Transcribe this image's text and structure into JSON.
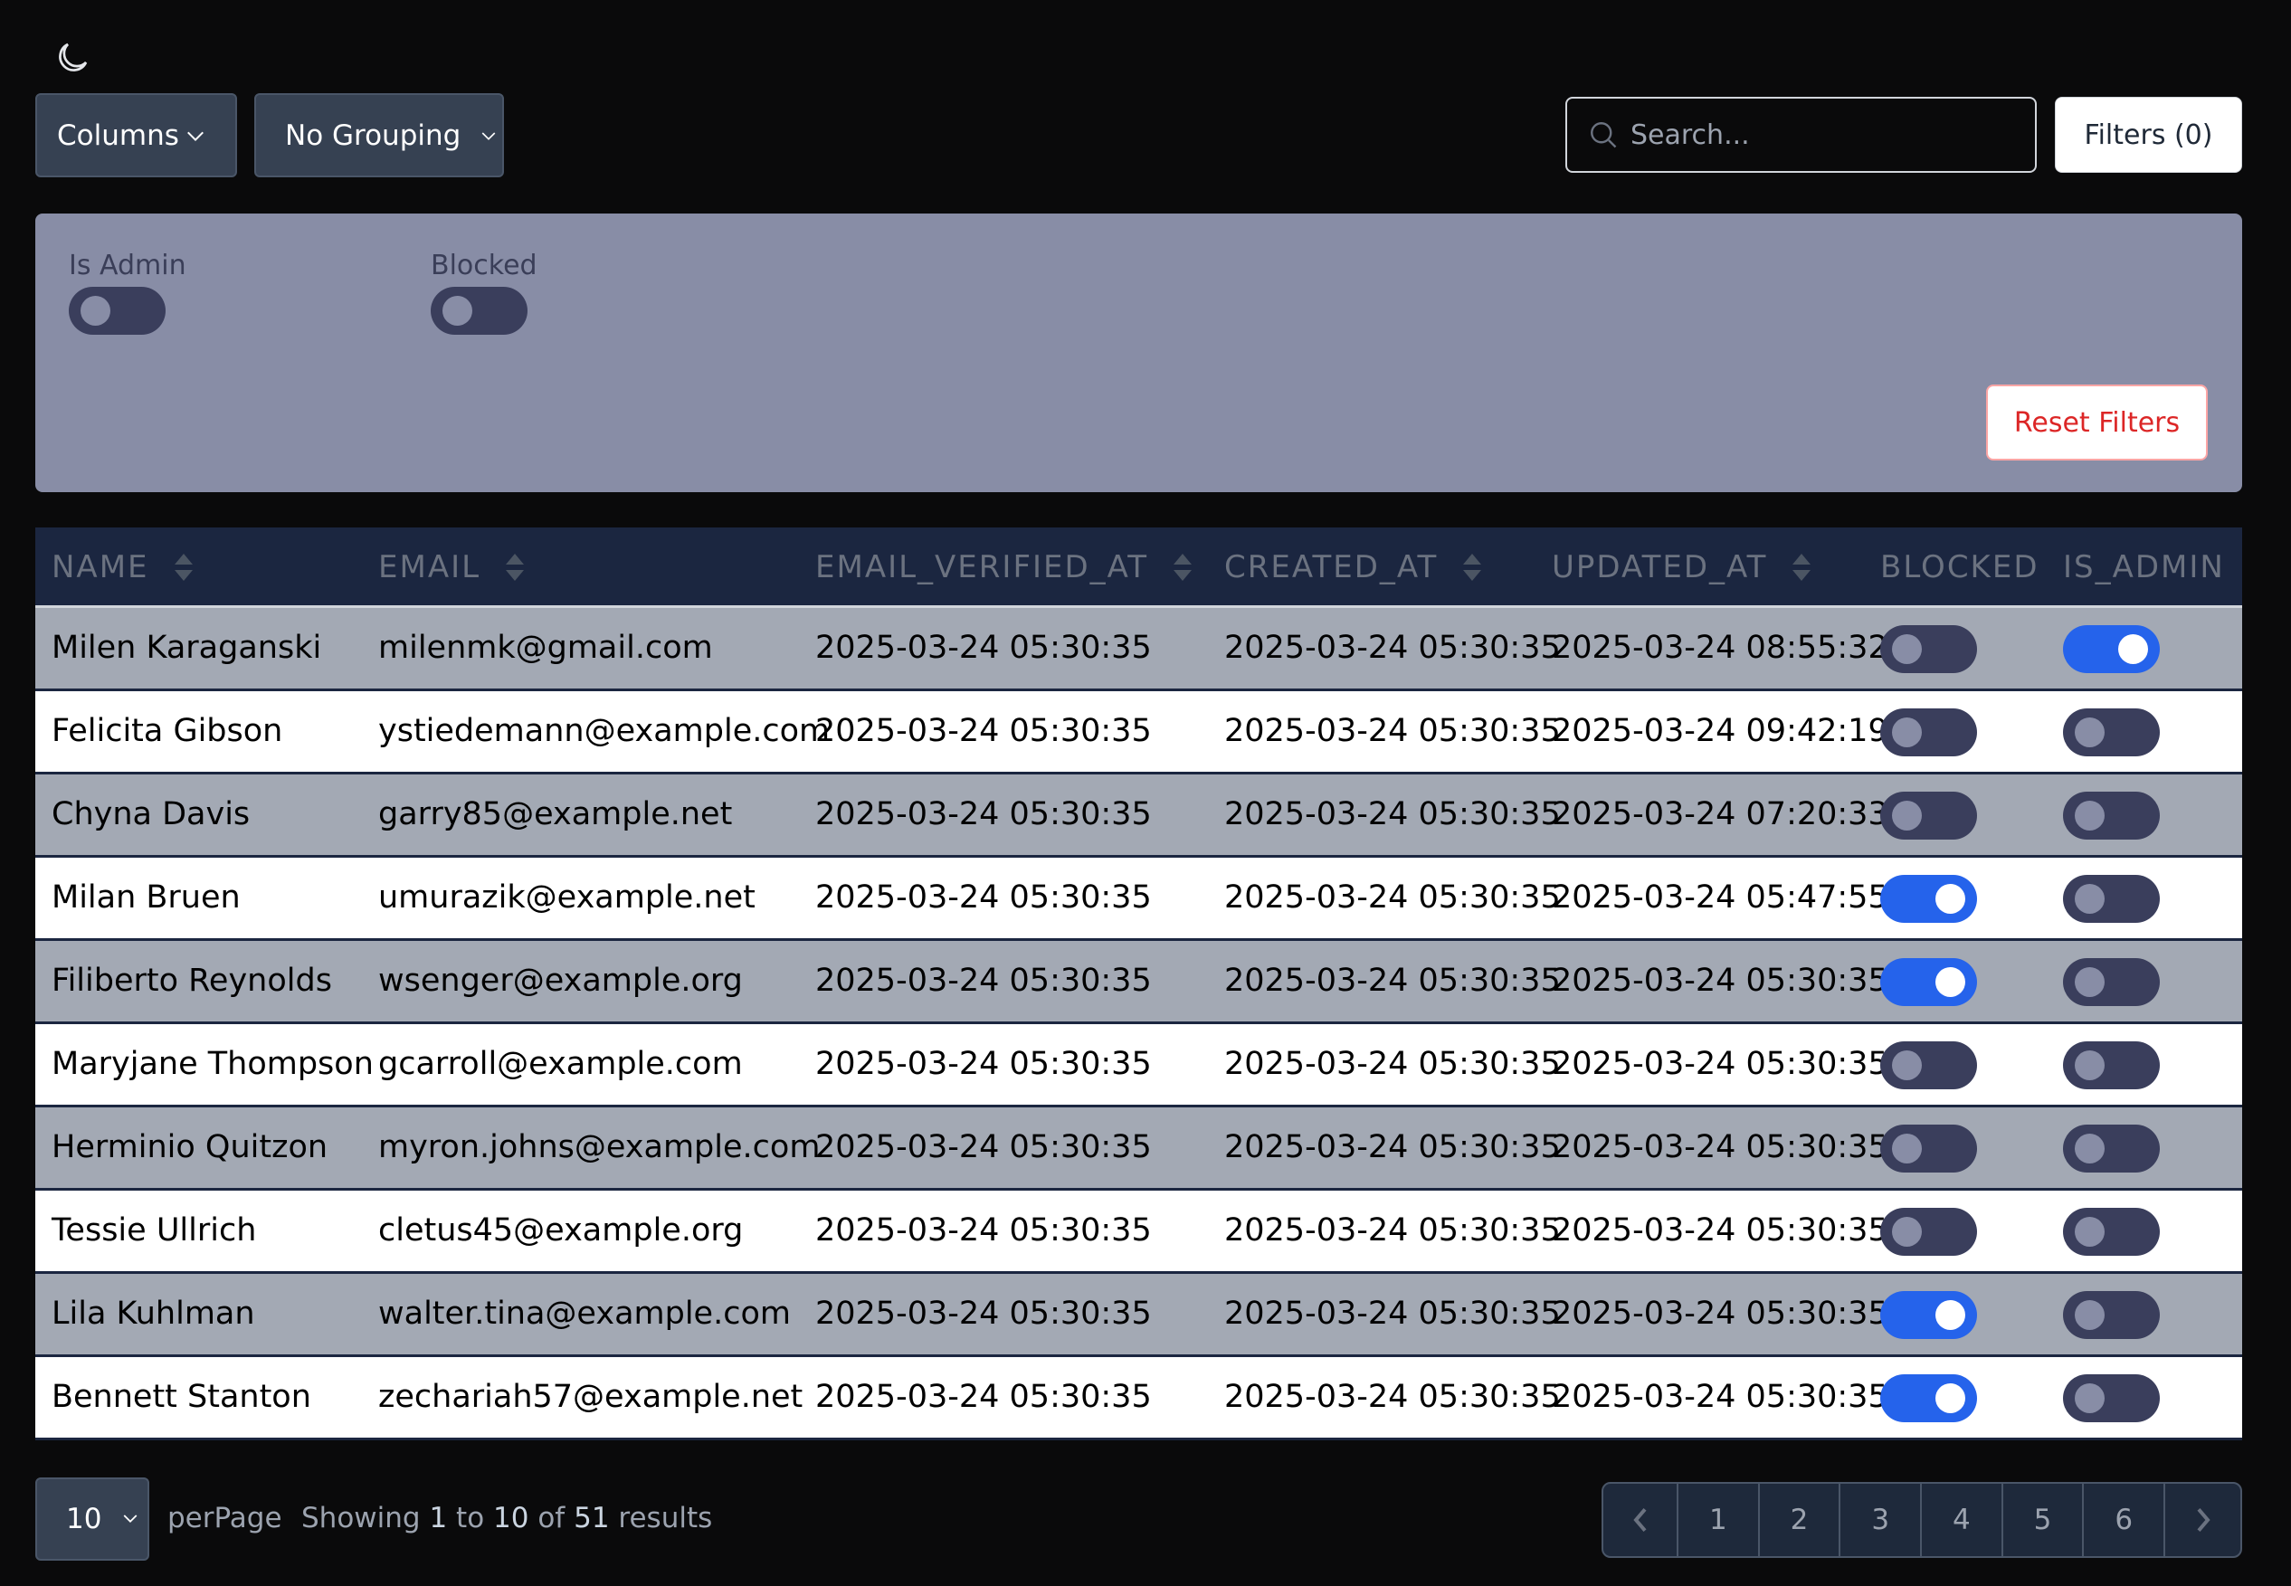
{
  "toolbar": {
    "theme_icon": "moon-icon",
    "columns_label": "Columns",
    "grouping_label": "No Grouping",
    "search_placeholder": "Search...",
    "filters_label": "Filters (0)"
  },
  "filters": {
    "is_admin_label": "Is Admin",
    "is_admin_on": false,
    "blocked_label": "Blocked",
    "blocked_on": false,
    "reset_label": "Reset Filters"
  },
  "table": {
    "headers": [
      "NAME",
      "EMAIL",
      "EMAIL_VERIFIED_AT",
      "CREATED_AT",
      "UPDATED_AT",
      "BLOCKED",
      "IS_ADMIN"
    ],
    "rows": [
      {
        "name": "Milen Karaganski",
        "email": "milenmk@gmail.com",
        "verified": "2025-03-24 05:30:35",
        "created": "2025-03-24 05:30:35",
        "updated": "2025-03-24 08:55:32",
        "blocked": false,
        "is_admin": true
      },
      {
        "name": "Felicita Gibson",
        "email": "ystiedemann@example.com",
        "verified": "2025-03-24 05:30:35",
        "created": "2025-03-24 05:30:35",
        "updated": "2025-03-24 09:42:19",
        "blocked": false,
        "is_admin": false
      },
      {
        "name": "Chyna Davis",
        "email": "garry85@example.net",
        "verified": "2025-03-24 05:30:35",
        "created": "2025-03-24 05:30:35",
        "updated": "2025-03-24 07:20:33",
        "blocked": false,
        "is_admin": false
      },
      {
        "name": "Milan Bruen",
        "email": "umurazik@example.net",
        "verified": "2025-03-24 05:30:35",
        "created": "2025-03-24 05:30:35",
        "updated": "2025-03-24 05:47:55",
        "blocked": true,
        "is_admin": false
      },
      {
        "name": "Filiberto Reynolds",
        "email": "wsenger@example.org",
        "verified": "2025-03-24 05:30:35",
        "created": "2025-03-24 05:30:35",
        "updated": "2025-03-24 05:30:35",
        "blocked": true,
        "is_admin": false
      },
      {
        "name": "Maryjane Thompson",
        "email": "gcarroll@example.com",
        "verified": "2025-03-24 05:30:35",
        "created": "2025-03-24 05:30:35",
        "updated": "2025-03-24 05:30:35",
        "blocked": false,
        "is_admin": false
      },
      {
        "name": "Herminio Quitzon",
        "email": "myron.johns@example.com",
        "verified": "2025-03-24 05:30:35",
        "created": "2025-03-24 05:30:35",
        "updated": "2025-03-24 05:30:35",
        "blocked": false,
        "is_admin": false
      },
      {
        "name": "Tessie Ullrich",
        "email": "cletus45@example.org",
        "verified": "2025-03-24 05:30:35",
        "created": "2025-03-24 05:30:35",
        "updated": "2025-03-24 05:30:35",
        "blocked": false,
        "is_admin": false
      },
      {
        "name": "Lila Kuhlman",
        "email": "walter.tina@example.com",
        "verified": "2025-03-24 05:30:35",
        "created": "2025-03-24 05:30:35",
        "updated": "2025-03-24 05:30:35",
        "blocked": true,
        "is_admin": false
      },
      {
        "name": "Bennett Stanton",
        "email": "zechariah57@example.net",
        "verified": "2025-03-24 05:30:35",
        "created": "2025-03-24 05:30:35",
        "updated": "2025-03-24 05:30:35",
        "blocked": true,
        "is_admin": false
      }
    ]
  },
  "footer": {
    "per_page_value": "10",
    "per_page_label": "perPage",
    "showing_prefix": "Showing",
    "from": "1",
    "to_word": "to",
    "to": "10",
    "of_word": "of",
    "total": "51",
    "results_word": "results",
    "pages": [
      "1",
      "2",
      "3",
      "4",
      "5",
      "6"
    ]
  },
  "colors": {
    "accent": "#2563eb",
    "header_bg": "#1b2640",
    "panel_bg": "#888da6",
    "danger": "#dc2626"
  }
}
